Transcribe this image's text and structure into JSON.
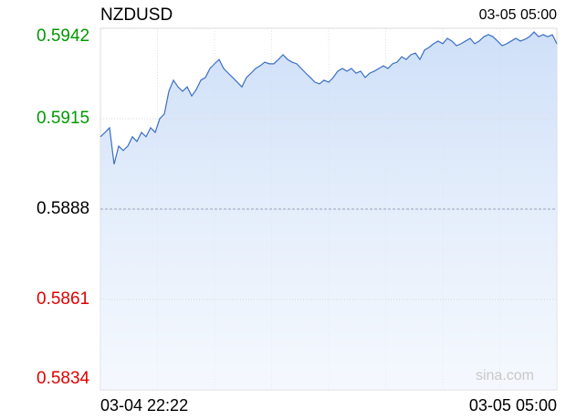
{
  "chart_data": {
    "type": "line",
    "title": "NZDUSD",
    "time": "03-05 05:00",
    "watermark": "sina.com",
    "x_labels": [
      "03-04 22:22",
      "03-05 05:00"
    ],
    "ylim": [
      0.5834,
      0.5942
    ],
    "yticks": [
      0.5942,
      0.5915,
      0.5888,
      0.5861,
      0.5834
    ],
    "reference": 0.5888,
    "up_color": "#009900",
    "down_color": "#e00000",
    "grid": true,
    "series": [
      {
        "name": "NZDUSD",
        "color": "#3a6fc4",
        "values": [
          0.59096,
          0.59109,
          0.59123,
          0.59014,
          0.59068,
          0.59055,
          0.59068,
          0.59096,
          0.59082,
          0.59109,
          0.59096,
          0.59123,
          0.59109,
          0.5915,
          0.59164,
          0.59232,
          0.59265,
          0.59245,
          0.59232,
          0.59245,
          0.59218,
          0.59237,
          0.59265,
          0.59273,
          0.593,
          0.59314,
          0.59327,
          0.593,
          0.59286,
          0.59273,
          0.59259,
          0.59245,
          0.59273,
          0.59286,
          0.593,
          0.59308,
          0.59319,
          0.59314,
          0.59314,
          0.59327,
          0.59341,
          0.59327,
          0.59319,
          0.59314,
          0.593,
          0.59286,
          0.59273,
          0.59259,
          0.59254,
          0.59265,
          0.59259,
          0.59273,
          0.59292,
          0.593,
          0.59292,
          0.593,
          0.59286,
          0.59292,
          0.59273,
          0.59286,
          0.59292,
          0.593,
          0.59308,
          0.593,
          0.59314,
          0.59319,
          0.59335,
          0.59327,
          0.59341,
          0.59346,
          0.59327,
          0.59355,
          0.59363,
          0.59374,
          0.59382,
          0.59374,
          0.5939,
          0.59382,
          0.59368,
          0.59374,
          0.59382,
          0.5939,
          0.59374,
          0.59382,
          0.59395,
          0.59401,
          0.59395,
          0.59382,
          0.59368,
          0.59374,
          0.59382,
          0.5939,
          0.59382,
          0.59387,
          0.59395,
          0.59409,
          0.59395,
          0.59401,
          0.59395,
          0.59401,
          0.59374
        ]
      }
    ]
  }
}
